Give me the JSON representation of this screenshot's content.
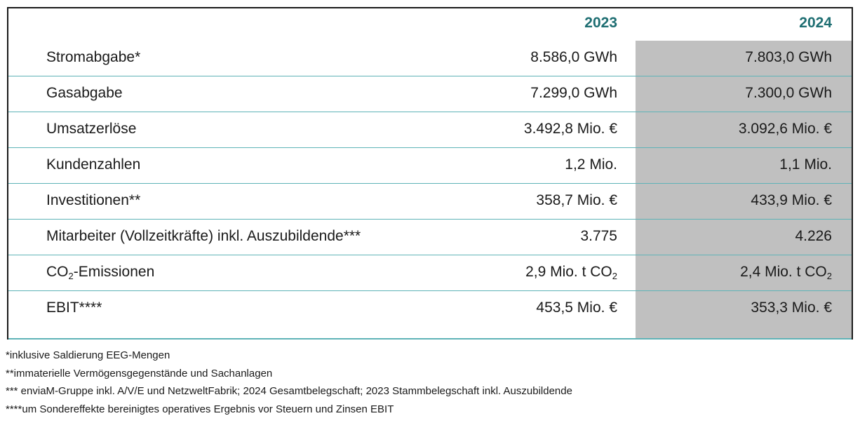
{
  "header": {
    "year_1": "2023",
    "year_2": "2024"
  },
  "rows": [
    {
      "label": "Stromabgabe*",
      "v2023": "8.586,0 GWh",
      "v2024": "7.803,0 GWh"
    },
    {
      "label": "Gasabgabe",
      "v2023": "7.299,0 GWh",
      "v2024": "7.300,0 GWh"
    },
    {
      "label": "Umsatzerlöse",
      "v2023": "3.492,8 Mio. €",
      "v2024": "3.092,6 Mio. €"
    },
    {
      "label": "Kundenzahlen",
      "v2023": "1,2 Mio.",
      "v2024": "1,1 Mio."
    },
    {
      "label": "Investitionen**",
      "v2023": "358,7 Mio. €",
      "v2024": "433,9 Mio. €"
    },
    {
      "label": "Mitarbeiter (Vollzeitkräfte) inkl. Auszubildende***",
      "v2023": "3.775",
      "v2024": "4.226"
    },
    {
      "label_pre": "CO",
      "label_sub": "2",
      "label_post": "-Emissionen",
      "v2023_pre": "2,9 Mio. t CO",
      "v2023_sub": "2",
      "v2024_pre": "2,4 Mio. t CO",
      "v2024_sub": "2"
    },
    {
      "label": "EBIT****",
      "v2023": "453,5 Mio. €",
      "v2024": "353,3 Mio. €"
    }
  ],
  "footnotes": [
    "*inklusive Saldierung EEG-Mengen",
    "**immaterielle Vermögensgegenstände und Sachanlagen",
    "*** enviaM-Gruppe inkl. A/V/E und NetzweltFabrik; 2024 Gesamtbelegschaft; 2023 Stammbelegschaft inkl. Auszubildende",
    "****um Sondereffekte bereinigtes operatives Ergebnis vor Steuern und Zinsen EBIT"
  ],
  "colors": {
    "year_header": "#1e6e72",
    "row_divider": "#5fb3b7",
    "shaded_column": "#c0c0c0"
  }
}
